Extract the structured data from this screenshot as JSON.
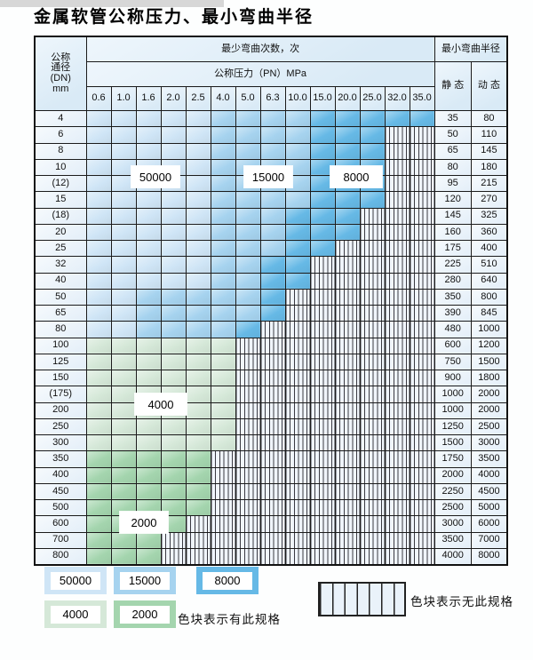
{
  "title": "金属软管公称压力、最小弯曲半径",
  "colors": {
    "blue_light": "#cfe5f6",
    "blue_mid": "#a6d3ef",
    "blue_dark": "#66b9e6",
    "green_light": "#d5e8d8",
    "green_mid": "#a4d5ae",
    "header_bg": "#d9eaf6"
  },
  "zone_labels": {
    "blue_light": "50000",
    "blue_mid": "15000",
    "blue_dark": "8000",
    "green_light": "4000",
    "green_mid": "2000"
  },
  "table": {
    "header": {
      "dn_lines": [
        "公称",
        "通径",
        "(DN)",
        "mm"
      ],
      "bend_cycles": "最少弯曲次数，次",
      "pressure": "公称压力（PN）MPa",
      "pressures": [
        "0.6",
        "1.0",
        "1.6",
        "2.0",
        "2.5",
        "4.0",
        "5.0",
        "6.3",
        "10.0",
        "15.0",
        "20.0",
        "25.0",
        "32.0",
        "35.0"
      ],
      "bend_radius": "最小弯曲半径",
      "static": "静 态",
      "dynamic": "动 态"
    },
    "rows": [
      {
        "dn": "4",
        "pattern": "LLLLLMMMMDDDDD",
        "static": "35",
        "dynamic": "80"
      },
      {
        "dn": "6",
        "pattern": "LLLLLMMMMDDD--",
        "static": "50",
        "dynamic": "110"
      },
      {
        "dn": "8",
        "pattern": "LLLLLMMMMDDD--",
        "static": "65",
        "dynamic": "145"
      },
      {
        "dn": "10",
        "pattern": "LLLLLMMMMDDD--",
        "static": "80",
        "dynamic": "180"
      },
      {
        "dn": "(12)",
        "pattern": "LLLLLMMMMDDD--",
        "static": "95",
        "dynamic": "215"
      },
      {
        "dn": "15",
        "pattern": "LLLLLMMMMDDD--",
        "static": "120",
        "dynamic": "270"
      },
      {
        "dn": "(18)",
        "pattern": "LLLLLMMMDDD---",
        "static": "145",
        "dynamic": "325"
      },
      {
        "dn": "20",
        "pattern": "LLLLLMMMDDD---",
        "static": "160",
        "dynamic": "360"
      },
      {
        "dn": "25",
        "pattern": "LLLLLMMMDD----",
        "static": "175",
        "dynamic": "400"
      },
      {
        "dn": "32",
        "pattern": "LLLLLMMDD-----",
        "static": "225",
        "dynamic": "510"
      },
      {
        "dn": "40",
        "pattern": "LLLLLMMDD-----",
        "static": "280",
        "dynamic": "640"
      },
      {
        "dn": "50",
        "pattern": "LLMMMMMD------",
        "static": "350",
        "dynamic": "800"
      },
      {
        "dn": "65",
        "pattern": "LLMMMMMD------",
        "static": "390",
        "dynamic": "845"
      },
      {
        "dn": "80",
        "pattern": "LLMMMMD-------",
        "static": "480",
        "dynamic": "1000"
      },
      {
        "dn": "100",
        "pattern": "GGGGGG--------",
        "static": "600",
        "dynamic": "1200"
      },
      {
        "dn": "125",
        "pattern": "GGGGGG--------",
        "static": "750",
        "dynamic": "1500"
      },
      {
        "dn": "150",
        "pattern": "GGGGGG--------",
        "static": "900",
        "dynamic": "1800"
      },
      {
        "dn": "(175)",
        "pattern": "GGGGGG--------",
        "static": "1000",
        "dynamic": "2000"
      },
      {
        "dn": "200",
        "pattern": "GGGGGG--------",
        "static": "1000",
        "dynamic": "2000"
      },
      {
        "dn": "250",
        "pattern": "GGGGGG--------",
        "static": "1250",
        "dynamic": "2500"
      },
      {
        "dn": "300",
        "pattern": "GGGGGG--------",
        "static": "1500",
        "dynamic": "3000"
      },
      {
        "dn": "350",
        "pattern": "EEEEE---------",
        "static": "1750",
        "dynamic": "3500"
      },
      {
        "dn": "400",
        "pattern": "EEEEE---------",
        "static": "2000",
        "dynamic": "4000"
      },
      {
        "dn": "450",
        "pattern": "EEEEE---------",
        "static": "2250",
        "dynamic": "4500"
      },
      {
        "dn": "500",
        "pattern": "EEEEE---------",
        "static": "2500",
        "dynamic": "5000"
      },
      {
        "dn": "600",
        "pattern": "EEEE----------",
        "static": "3000",
        "dynamic": "6000"
      },
      {
        "dn": "700",
        "pattern": "EEE-----------",
        "static": "3500",
        "dynamic": "7000"
      },
      {
        "dn": "800",
        "pattern": "EEE-----------",
        "static": "4000",
        "dynamic": "8000"
      }
    ]
  },
  "legend": {
    "has_spec_note": "色块表示有此规格",
    "no_spec_note": "色块表示无此规格"
  },
  "chart_data": {
    "type": "table",
    "title": "金属软管公称压力、最小弯曲半径",
    "pressure_columns_MPa": [
      0.6,
      1.0,
      1.6,
      2.0,
      2.5,
      4.0,
      5.0,
      6.3,
      10.0,
      15.0,
      20.0,
      25.0,
      32.0,
      35.0
    ],
    "bend_cycle_zones": {
      "L": 50000,
      "M": 15000,
      "D": 8000,
      "G": 4000,
      "E": 2000,
      "-": null
    }
  }
}
